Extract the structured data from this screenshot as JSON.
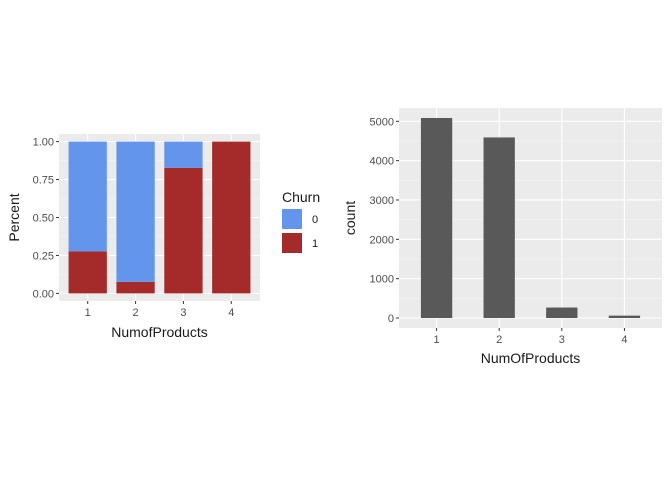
{
  "colors": {
    "churn_0": "#6495ED",
    "churn_1": "#A52A2A",
    "count_bar": "#595959",
    "panel_bg": "#EBEBEB",
    "grid_major": "#FFFFFF",
    "grid_minor": "#F5F5F5"
  },
  "chart_data": [
    {
      "type": "bar",
      "stacked": true,
      "categories": [
        "1",
        "2",
        "3",
        "4"
      ],
      "series": [
        {
          "name": "1",
          "values": [
            0.277,
            0.076,
            0.827,
            1.0
          ]
        },
        {
          "name": "0",
          "values": [
            0.723,
            0.924,
            0.173,
            0.0
          ]
        }
      ],
      "xlabel": "NumofProducts",
      "ylabel": "Percent",
      "ylim": [
        -0.05,
        1.05
      ],
      "yticks": [
        0.0,
        0.25,
        0.5,
        0.75,
        1.0
      ],
      "ytick_labels": [
        "0.00",
        "0.25",
        "0.50",
        "0.75",
        "1.00"
      ],
      "legend": {
        "title": "Churn",
        "entries": [
          "0",
          "1"
        ],
        "placement": "right"
      },
      "grid": true
    },
    {
      "type": "bar",
      "categories": [
        "1",
        "2",
        "3",
        "4"
      ],
      "values": [
        5084,
        4590,
        266,
        60
      ],
      "xlabel": "NumOfProducts",
      "ylabel": "count",
      "ylim": [
        -254,
        5338
      ],
      "yticks": [
        0,
        1000,
        2000,
        3000,
        4000,
        5000
      ],
      "ytick_labels": [
        "0",
        "1000",
        "2000",
        "3000",
        "4000",
        "5000"
      ],
      "grid": true
    }
  ]
}
